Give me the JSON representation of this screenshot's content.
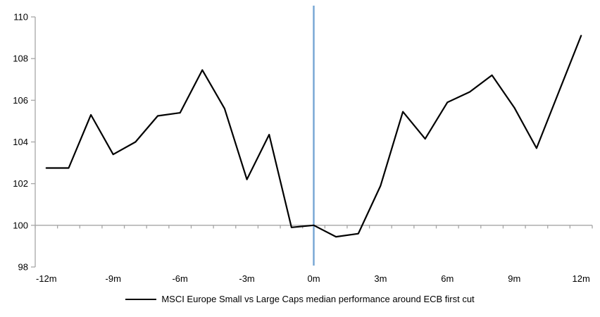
{
  "chart": {
    "legend": {
      "label": "MSCI Europe Small vs Large Caps median performance around ECB first cut"
    },
    "colors": {
      "series": "#000000",
      "event_line": "#75A5D3",
      "axis": "#A6A6A6",
      "text": "#000000",
      "background": "#FFFFFF"
    }
  },
  "chart_data": {
    "type": "line",
    "title": "",
    "xlabel": "",
    "ylabel": "",
    "x": [
      -12,
      -11,
      -10,
      -9,
      -8,
      -7,
      -6,
      -5,
      -4,
      -3,
      -2,
      -1,
      0,
      1,
      2,
      3,
      4,
      5,
      6,
      7,
      8,
      9,
      10,
      11,
      12
    ],
    "series": [
      {
        "name": "MSCI Europe Small vs Large Caps median performance around ECB first cut",
        "values": [
          102.75,
          102.75,
          105.3,
          103.4,
          104.0,
          105.25,
          105.4,
          107.45,
          105.6,
          102.2,
          104.35,
          99.9,
          100.0,
          99.45,
          99.6,
          101.9,
          105.45,
          104.15,
          105.9,
          106.4,
          107.2,
          105.65,
          103.7,
          106.4,
          109.1
        ]
      }
    ],
    "ylim": [
      98,
      110
    ],
    "y_ticks": [
      98,
      100,
      102,
      104,
      106,
      108,
      110
    ],
    "x_tick_positions": [
      -12,
      -9,
      -6,
      -3,
      0,
      3,
      6,
      9,
      12
    ],
    "x_tick_labels": [
      "-12m",
      "-9m",
      "-6m",
      "-3m",
      "0m",
      "3m",
      "6m",
      "9m",
      "12m"
    ],
    "baseline_y": 100,
    "event_x": 0,
    "grid": "off",
    "legend_position": "bottom"
  }
}
